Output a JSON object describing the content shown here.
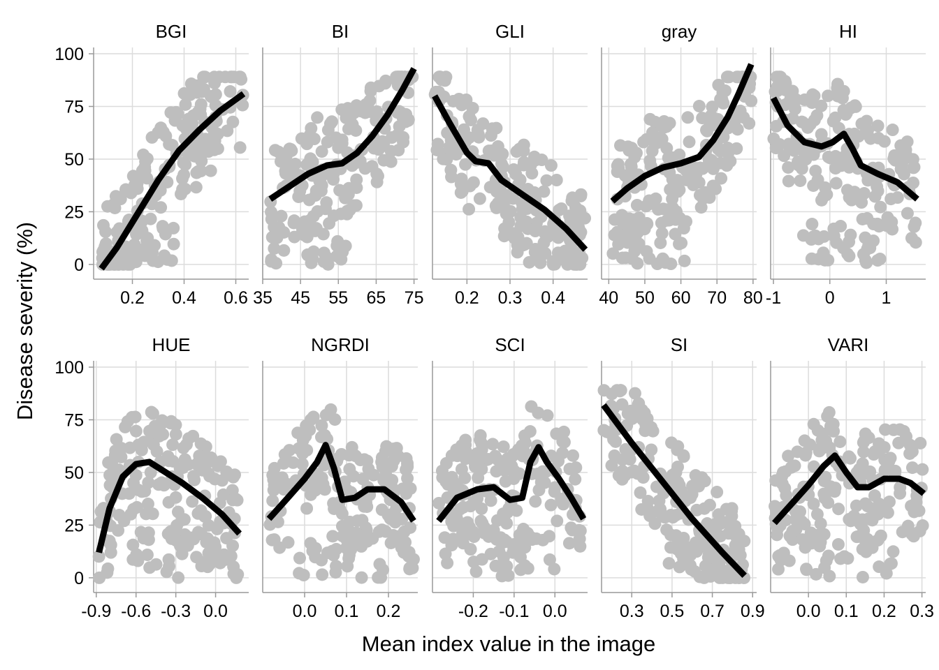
{
  "figure": {
    "title": "",
    "xlabel": "Mean index value in the image",
    "ylabel": "Disease severity (%)"
  },
  "colors": {
    "points": "#bebebe",
    "smooth": "#000000",
    "grid": "#dcdcdc",
    "axis": "#999999",
    "text": "#000000"
  },
  "chart_data": [
    {
      "type": "scatter",
      "title": "BGI",
      "xlim": [
        0.05,
        0.65
      ],
      "ylim": [
        -7,
        103
      ],
      "xticks": [
        0.2,
        0.4,
        0.6
      ],
      "xtick_labels": [
        "0.2",
        "0.4",
        "0.6"
      ],
      "yticks": [
        0,
        25,
        50,
        75,
        100
      ],
      "ytick_labels": [
        "0",
        "25",
        "50",
        "75",
        "100"
      ],
      "grid": true,
      "shape": "rise",
      "smooth": [
        [
          0.08,
          -2
        ],
        [
          0.14,
          8
        ],
        [
          0.22,
          24
        ],
        [
          0.3,
          40
        ],
        [
          0.38,
          54
        ],
        [
          0.46,
          64
        ],
        [
          0.54,
          73
        ],
        [
          0.63,
          81
        ]
      ]
    },
    {
      "type": "scatter",
      "title": "BI",
      "xlim": [
        35,
        76
      ],
      "ylim": [
        -7,
        103
      ],
      "xticks": [
        35,
        45,
        55,
        65,
        75
      ],
      "xtick_labels": [
        "35",
        "45",
        "55",
        "65",
        "75"
      ],
      "yticks": [
        0,
        25,
        50,
        75,
        100
      ],
      "ytick_labels": [
        "0",
        "25",
        "50",
        "75",
        "100"
      ],
      "grid": true,
      "shape": "rise",
      "smooth": [
        [
          37,
          31
        ],
        [
          42,
          37
        ],
        [
          47,
          43
        ],
        [
          52,
          47
        ],
        [
          56,
          48
        ],
        [
          60,
          53
        ],
        [
          64,
          61
        ],
        [
          68,
          71
        ],
        [
          72,
          83
        ],
        [
          75,
          93
        ]
      ]
    },
    {
      "type": "scatter",
      "title": "GLI",
      "xlim": [
        0.12,
        0.48
      ],
      "ylim": [
        -7,
        103
      ],
      "xticks": [
        0.2,
        0.3,
        0.4
      ],
      "xtick_labels": [
        "0.2",
        "0.3",
        "0.4"
      ],
      "yticks": [
        0,
        25,
        50,
        75,
        100
      ],
      "ytick_labels": [
        "0",
        "25",
        "50",
        "75",
        "100"
      ],
      "grid": true,
      "shape": "fall",
      "smooth": [
        [
          0.125,
          80
        ],
        [
          0.16,
          67
        ],
        [
          0.2,
          53
        ],
        [
          0.22,
          49
        ],
        [
          0.25,
          48
        ],
        [
          0.28,
          40
        ],
        [
          0.33,
          33
        ],
        [
          0.38,
          26
        ],
        [
          0.43,
          17
        ],
        [
          0.475,
          7
        ]
      ]
    },
    {
      "type": "scatter",
      "title": "gray",
      "xlim": [
        38,
        81
      ],
      "ylim": [
        -7,
        103
      ],
      "xticks": [
        40,
        50,
        60,
        70,
        80
      ],
      "xtick_labels": [
        "40",
        "50",
        "60",
        "70",
        "80"
      ],
      "yticks": [
        0,
        25,
        50,
        75,
        100
      ],
      "ytick_labels": [
        "0",
        "25",
        "50",
        "75",
        "100"
      ],
      "grid": true,
      "shape": "rise",
      "smooth": [
        [
          41,
          30
        ],
        [
          45,
          36
        ],
        [
          50,
          42
        ],
        [
          55,
          46
        ],
        [
          60,
          48
        ],
        [
          65,
          51
        ],
        [
          69,
          59
        ],
        [
          73,
          70
        ],
        [
          76,
          81
        ],
        [
          79.5,
          95
        ]
      ]
    },
    {
      "type": "scatter",
      "title": "HI",
      "xlim": [
        -1.05,
        1.7
      ],
      "ylim": [
        -7,
        103
      ],
      "xticks": [
        -1,
        0,
        1
      ],
      "xtick_labels": [
        "-1",
        "0",
        "1"
      ],
      "yticks": [
        0,
        25,
        50,
        75,
        100
      ],
      "ytick_labels": [
        "0",
        "25",
        "50",
        "75",
        "100"
      ],
      "grid": true,
      "shape": "hump",
      "smooth": [
        [
          -1.0,
          79
        ],
        [
          -0.75,
          66
        ],
        [
          -0.45,
          58
        ],
        [
          -0.15,
          56
        ],
        [
          0.05,
          58
        ],
        [
          0.25,
          62
        ],
        [
          0.4,
          55
        ],
        [
          0.55,
          47
        ],
        [
          0.85,
          43
        ],
        [
          1.2,
          39
        ],
        [
          1.55,
          31
        ]
      ]
    },
    {
      "type": "scatter",
      "title": "HUE",
      "xlim": [
        -0.92,
        0.25
      ],
      "ylim": [
        -7,
        103
      ],
      "xticks": [
        -0.9,
        -0.6,
        -0.3,
        0.0
      ],
      "xtick_labels": [
        "-0.9",
        "-0.6",
        "-0.3",
        "0.0"
      ],
      "yticks": [
        0,
        25,
        50,
        75,
        100
      ],
      "ytick_labels": [
        "0",
        "25",
        "50",
        "75",
        "100"
      ],
      "grid": true,
      "shape": "hump",
      "smooth": [
        [
          -0.88,
          12
        ],
        [
          -0.8,
          33
        ],
        [
          -0.7,
          48
        ],
        [
          -0.6,
          54
        ],
        [
          -0.5,
          55
        ],
        [
          -0.4,
          51
        ],
        [
          -0.25,
          45
        ],
        [
          -0.1,
          38
        ],
        [
          0.05,
          30
        ],
        [
          0.18,
          21
        ]
      ]
    },
    {
      "type": "scatter",
      "title": "NGRDI",
      "xlim": [
        -0.1,
        0.27
      ],
      "ylim": [
        -7,
        103
      ],
      "xticks": [
        0.0,
        0.1,
        0.2
      ],
      "xtick_labels": [
        "0.0",
        "0.1",
        "0.2"
      ],
      "yticks": [
        0,
        25,
        50,
        75,
        100
      ],
      "ytick_labels": [
        "0",
        "25",
        "50",
        "75",
        "100"
      ],
      "grid": true,
      "shape": "hump",
      "smooth": [
        [
          -0.085,
          28
        ],
        [
          -0.04,
          38
        ],
        [
          0.0,
          47
        ],
        [
          0.03,
          55
        ],
        [
          0.05,
          63
        ],
        [
          0.07,
          52
        ],
        [
          0.09,
          37
        ],
        [
          0.12,
          38
        ],
        [
          0.15,
          42
        ],
        [
          0.19,
          42
        ],
        [
          0.23,
          36
        ],
        [
          0.26,
          27
        ]
      ]
    },
    {
      "type": "scatter",
      "title": "SCI",
      "xlim": [
        -0.3,
        0.08
      ],
      "ylim": [
        -7,
        103
      ],
      "xticks": [
        -0.2,
        -0.1,
        0.0
      ],
      "xtick_labels": [
        "-0.2",
        "-0.1",
        "0.0"
      ],
      "yticks": [
        0,
        25,
        50,
        75,
        100
      ],
      "ytick_labels": [
        "0",
        "25",
        "50",
        "75",
        "100"
      ],
      "grid": true,
      "shape": "hump",
      "smooth": [
        [
          -0.285,
          27
        ],
        [
          -0.24,
          38
        ],
        [
          -0.19,
          42
        ],
        [
          -0.15,
          43
        ],
        [
          -0.11,
          37
        ],
        [
          -0.08,
          38
        ],
        [
          -0.06,
          55
        ],
        [
          -0.04,
          62
        ],
        [
          -0.02,
          55
        ],
        [
          0.01,
          47
        ],
        [
          0.04,
          38
        ],
        [
          0.07,
          28
        ]
      ]
    },
    {
      "type": "scatter",
      "title": "SI",
      "xlim": [
        0.15,
        0.92
      ],
      "ylim": [
        -7,
        103
      ],
      "xticks": [
        0.3,
        0.5,
        0.7,
        0.9
      ],
      "xtick_labels": [
        "0.3",
        "0.5",
        "0.7",
        "0.9"
      ],
      "yticks": [
        0,
        25,
        50,
        75,
        100
      ],
      "ytick_labels": [
        "0",
        "25",
        "50",
        "75",
        "100"
      ],
      "grid": true,
      "shape": "fall",
      "smooth": [
        [
          0.16,
          82
        ],
        [
          0.3,
          64
        ],
        [
          0.45,
          46
        ],
        [
          0.6,
          28
        ],
        [
          0.75,
          12
        ],
        [
          0.86,
          1
        ]
      ]
    },
    {
      "type": "scatter",
      "title": "VARI",
      "xlim": [
        -0.1,
        0.31
      ],
      "ylim": [
        -7,
        103
      ],
      "xticks": [
        0.0,
        0.1,
        0.2,
        0.3
      ],
      "xtick_labels": [
        "0.0",
        "0.1",
        "0.2",
        "0.3"
      ],
      "yticks": [
        0,
        25,
        50,
        75,
        100
      ],
      "ytick_labels": [
        "0",
        "25",
        "50",
        "75",
        "100"
      ],
      "grid": true,
      "shape": "hump",
      "smooth": [
        [
          -0.09,
          26
        ],
        [
          -0.04,
          36
        ],
        [
          0.0,
          44
        ],
        [
          0.04,
          53
        ],
        [
          0.07,
          58
        ],
        [
          0.1,
          50
        ],
        [
          0.13,
          43
        ],
        [
          0.16,
          43
        ],
        [
          0.2,
          47
        ],
        [
          0.24,
          47
        ],
        [
          0.27,
          45
        ],
        [
          0.305,
          40
        ]
      ]
    }
  ]
}
